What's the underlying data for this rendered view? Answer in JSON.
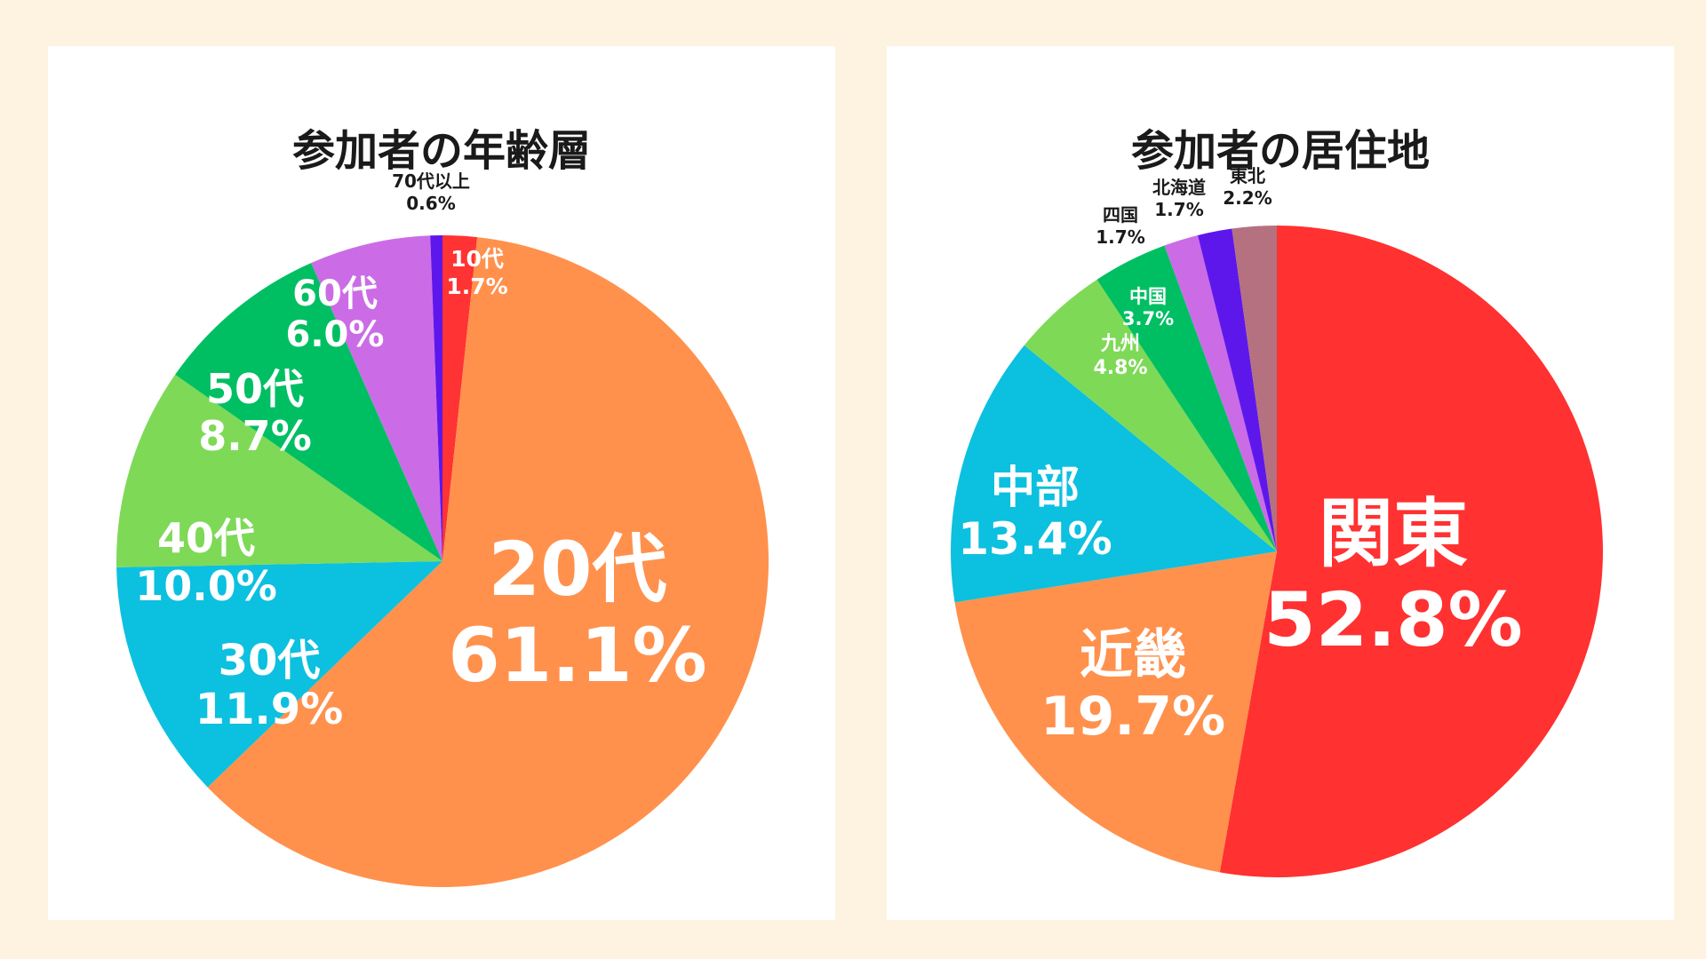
{
  "chart_data": [
    {
      "type": "pie",
      "title": "参加者の年齢層",
      "start": "12 o'clock, clockwise",
      "slices": [
        {
          "label": "10代",
          "pct_text": "1.7%",
          "value": 1.7,
          "color": "#ff3333"
        },
        {
          "label": "20代",
          "pct_text": "61.1%",
          "value": 61.1,
          "color": "#ff914d"
        },
        {
          "label": "30代",
          "pct_text": "11.9%",
          "value": 11.9,
          "color": "#0cc0df"
        },
        {
          "label": "40代",
          "pct_text": "10.0%",
          "value": 10.0,
          "color": "#7ed957"
        },
        {
          "label": "50代",
          "pct_text": "8.7%",
          "value": 8.7,
          "color": "#00bf63"
        },
        {
          "label": "60代",
          "pct_text": "6.0%",
          "value": 6.0,
          "color": "#cb6ce6"
        },
        {
          "label": "70代以上",
          "pct_text": "0.6%",
          "value": 0.6,
          "color": "#5e17eb"
        }
      ]
    },
    {
      "type": "pie",
      "title": "参加者の居住地",
      "start": "12 o'clock, clockwise",
      "slices": [
        {
          "label": "関東",
          "pct_text": "52.8%",
          "value": 52.8,
          "color": "#ff3131"
        },
        {
          "label": "近畿",
          "pct_text": "19.7%",
          "value": 19.7,
          "color": "#ff914d"
        },
        {
          "label": "中部",
          "pct_text": "13.4%",
          "value": 13.4,
          "color": "#0cc0df"
        },
        {
          "label": "九州",
          "pct_text": "4.8%",
          "value": 4.8,
          "color": "#7ed957"
        },
        {
          "label": "中国",
          "pct_text": "3.7%",
          "value": 3.7,
          "color": "#00bf63"
        },
        {
          "label": "四国",
          "pct_text": "1.7%",
          "value": 1.7,
          "color": "#cb6ce6"
        },
        {
          "label": "北海道",
          "pct_text": "1.7%",
          "value": 1.7,
          "color": "#5e17eb"
        },
        {
          "label": "東北",
          "pct_text": "2.2%",
          "value": 2.2,
          "color": "#b5717f"
        }
      ]
    }
  ],
  "colors": {
    "page_background": "#fdf3e0",
    "panel_background": "#ffffff",
    "inside_text": "#ffffff",
    "outside_text": "#1a1a1a"
  }
}
